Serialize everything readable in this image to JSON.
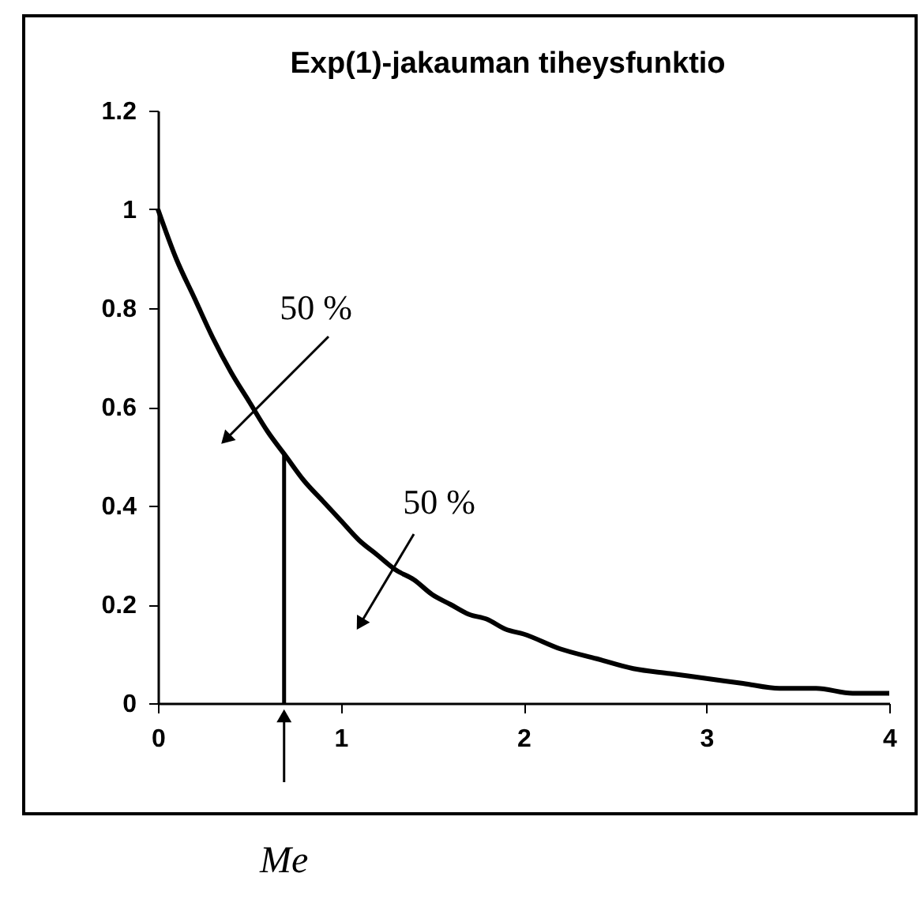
{
  "chart_data": {
    "type": "line",
    "title": "Exp(1)-jakauman tiheysfunktio",
    "x": [
      0,
      0.1,
      0.2,
      0.3,
      0.4,
      0.5,
      0.6,
      0.7,
      0.8,
      0.9,
      1.0,
      1.1,
      1.2,
      1.3,
      1.4,
      1.5,
      1.6,
      1.7,
      1.8,
      1.9,
      2.0,
      2.2,
      2.4,
      2.6,
      2.8,
      3.0,
      3.2,
      3.4,
      3.6,
      3.8,
      4.0
    ],
    "series": [
      {
        "color": "#000000",
        "values": [
          1.0,
          0.9,
          0.82,
          0.74,
          0.67,
          0.61,
          0.55,
          0.5,
          0.45,
          0.41,
          0.37,
          0.33,
          0.3,
          0.27,
          0.25,
          0.22,
          0.2,
          0.18,
          0.17,
          0.15,
          0.14,
          0.11,
          0.09,
          0.07,
          0.06,
          0.05,
          0.04,
          0.03,
          0.03,
          0.02,
          0.02
        ]
      }
    ],
    "xlim": [
      0,
      4
    ],
    "xticks": [
      0,
      1,
      2,
      3,
      4
    ],
    "ylim": [
      0,
      1.2
    ],
    "yticks": [
      0,
      0.2,
      0.4,
      0.6,
      0.8,
      1,
      1.2
    ],
    "grid": false,
    "marker": "none",
    "line_style": "solid",
    "ref_lines": [
      {
        "axis": "x",
        "value": 0.69,
        "label": "Me"
      }
    ],
    "annotations": [
      "50 %",
      "50 %"
    ]
  }
}
